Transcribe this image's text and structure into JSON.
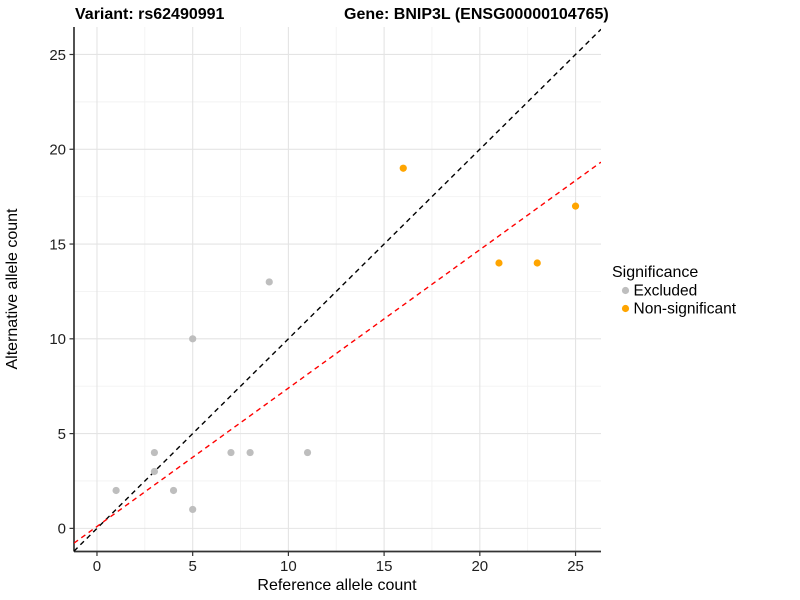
{
  "page": {
    "background": "#FFFFFF"
  },
  "chart_data": {
    "type": "scatter",
    "titles": {
      "left": "Variant: rs62490991",
      "right": "Gene: BNIP3L (ENSG00000104765)"
    },
    "xlabel": "Reference allele count",
    "ylabel": "Alternative allele count",
    "x_ticks": [
      0,
      5,
      10,
      15,
      20,
      25
    ],
    "y_ticks": [
      0,
      5,
      10,
      15,
      20,
      25
    ],
    "x_minor_ticks": [
      2.5,
      7.5,
      12.5,
      17.5,
      22.5
    ],
    "y_minor_ticks": [
      2.5,
      7.5,
      12.5,
      17.5,
      22.5
    ],
    "xlim": [
      -1.2,
      26.33
    ],
    "ylim": [
      -1.22,
      26.45
    ],
    "grid": true,
    "legend": {
      "title": "Significance",
      "position": "right",
      "entries": [
        {
          "label": "Excluded",
          "color": "#BEBEBE"
        },
        {
          "label": "Non-significant",
          "color": "#FFA500"
        }
      ]
    },
    "series": [
      {
        "name": "Excluded",
        "color": "#BEBEBE",
        "points": [
          [
            1,
            2
          ],
          [
            3,
            3
          ],
          [
            3,
            4
          ],
          [
            4,
            2
          ],
          [
            5,
            1
          ],
          [
            5,
            10
          ],
          [
            7,
            4
          ],
          [
            8,
            4
          ],
          [
            9,
            13
          ],
          [
            11,
            4
          ]
        ]
      },
      {
        "name": "Non-significant",
        "color": "#FFA500",
        "points": [
          [
            16,
            19
          ],
          [
            21,
            14
          ],
          [
            23,
            14
          ],
          [
            25,
            17
          ]
        ]
      }
    ],
    "lines": [
      {
        "name": "identity-line",
        "slope": 1,
        "intercept": 0,
        "color": "#000000",
        "style": "dashed"
      },
      {
        "name": "fit-line",
        "slope": 0.73,
        "intercept": 0.1,
        "color": "#FF0000",
        "style": "dashed"
      }
    ],
    "colors": {
      "major_grid": "#E4E4E4",
      "minor_grid": "#F2F2F2",
      "axis_line": "#333333",
      "point_gray": "#BEBEBE",
      "point_orange": "#FFA500"
    }
  }
}
